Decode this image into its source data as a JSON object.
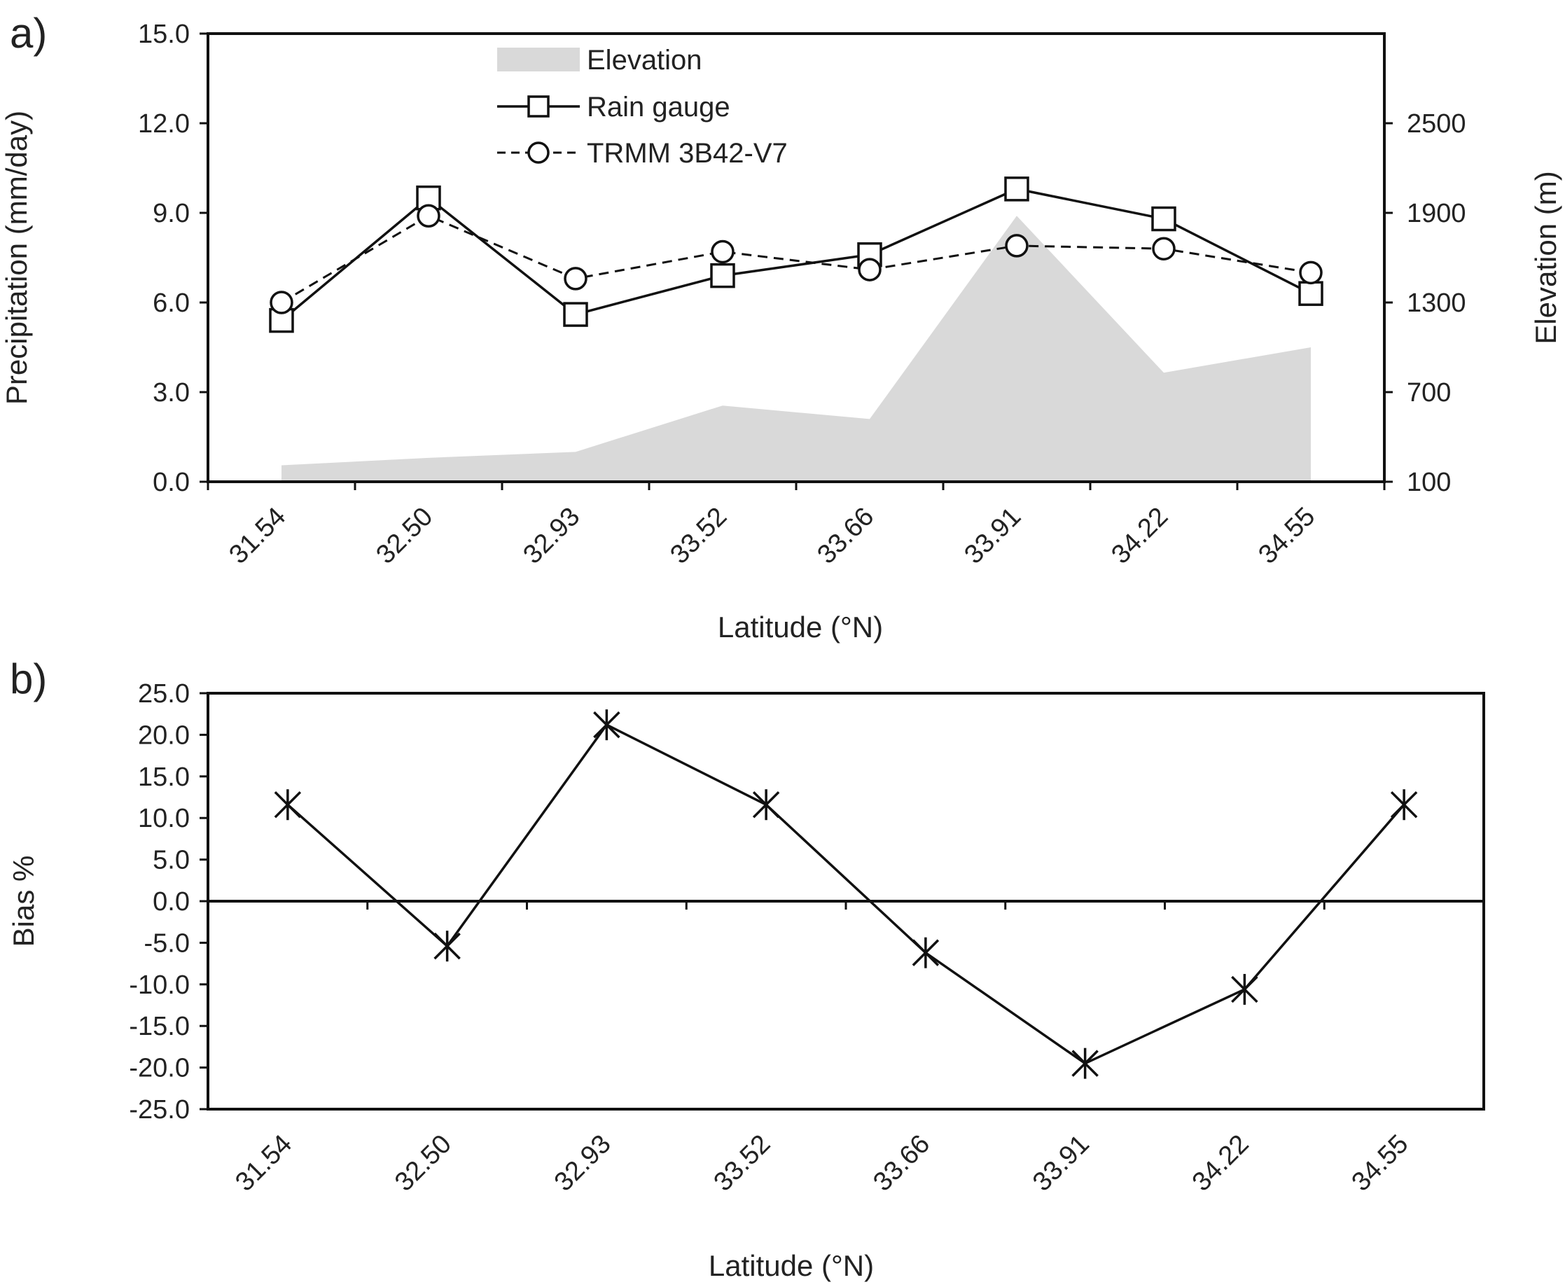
{
  "chart_data": [
    {
      "panel_label": "a)",
      "type": "line",
      "title": "",
      "categories": [
        "31.54",
        "32.50",
        "32.93",
        "33.52",
        "33.66",
        "33.91",
        "34.22",
        "34.55"
      ],
      "series": [
        {
          "name": "Rain gauge",
          "axis": "left",
          "marker": "square",
          "line": "solid",
          "values": [
            5.4,
            9.5,
            5.6,
            6.9,
            7.6,
            9.8,
            8.8,
            6.3
          ]
        },
        {
          "name": "TRMM 3B42-V7",
          "axis": "left",
          "marker": "circle",
          "line": "dashed",
          "values": [
            6.0,
            8.9,
            6.8,
            7.7,
            7.1,
            7.9,
            7.8,
            7.0
          ]
        },
        {
          "name": "Elevation",
          "axis": "right",
          "type": "area",
          "values": [
            210,
            260,
            300,
            610,
            520,
            1880,
            830,
            1000
          ]
        }
      ],
      "xlabel": "Latitude (°N)",
      "ylabel": "Precipitation (mm/day)",
      "y2label": "Elevation (m)",
      "ylim": [
        0,
        15
      ],
      "y2lim": [
        100,
        3100
      ],
      "yticks": [
        "0.0",
        "3.0",
        "6.0",
        "9.0",
        "12.0",
        "15.0"
      ],
      "y2ticks": [
        "100",
        "700",
        "1300",
        "1900",
        "2500"
      ],
      "legend_position": "top-center"
    },
    {
      "panel_label": "b)",
      "type": "line",
      "title": "",
      "categories": [
        "31.54",
        "32.50",
        "32.93",
        "33.52",
        "33.66",
        "33.91",
        "34.22",
        "34.55"
      ],
      "series": [
        {
          "name": "Bias",
          "marker": "star",
          "line": "solid",
          "values": [
            11.6,
            -5.4,
            21.2,
            11.6,
            -6.2,
            -19.5,
            -10.6,
            11.6
          ]
        }
      ],
      "xlabel": "Latitude (°N)",
      "ylabel": "Bias %",
      "ylim": [
        -25,
        25
      ],
      "yticks": [
        "-25.0",
        "-20.0",
        "-15.0",
        "-10.0",
        "-5.0",
        "0.0",
        "5.0",
        "10.0",
        "15.0",
        "20.0",
        "25.0"
      ]
    }
  ]
}
